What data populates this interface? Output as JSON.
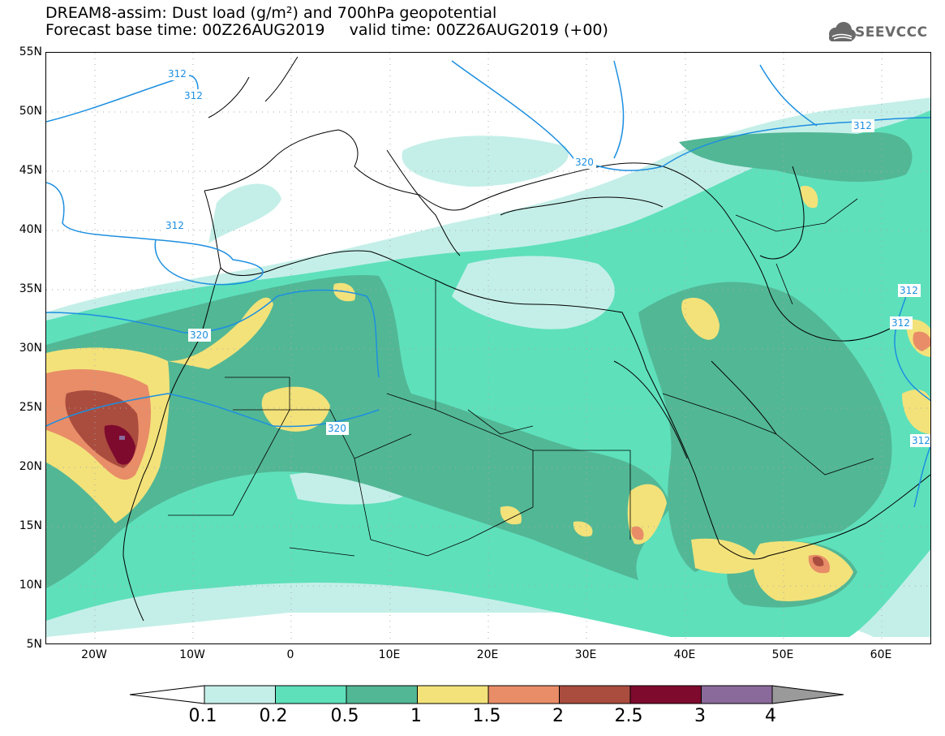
{
  "title": {
    "line1": "DREAM8-assim: Dust load (g/m²) and 700hPa geopotential",
    "line2": "Forecast base time: 00Z26AUG2019     valid time: 00Z26AUG2019 (+00)"
  },
  "logo": {
    "text": "SEEVCCC",
    "icon": "cloud-icon"
  },
  "map": {
    "lon_range": [
      -25,
      65
    ],
    "lat_range": [
      5,
      55
    ],
    "lat_labels": [
      "55N",
      "50N",
      "45N",
      "40N",
      "35N",
      "30N",
      "25N",
      "20N",
      "15N",
      "10N",
      "5N"
    ],
    "lon_labels": [
      "20W",
      "10W",
      "0",
      "10E",
      "20E",
      "30E",
      "40E",
      "50E",
      "60E"
    ],
    "contour_labels": [
      "312",
      "312",
      "312",
      "312",
      "312",
      "320",
      "320",
      "320",
      "312",
      "312"
    ],
    "dust_colors": {
      "c01": "#c4efe8",
      "c02": "#5ee0bb",
      "c05": "#52b795",
      "c1": "#f3e27a",
      "c15": "#e88d67",
      "c2": "#aa4c3e",
      "c25": "#7e0a2e",
      "c3": "#8a6a9b",
      "contour": "#1d8fe0"
    }
  },
  "colorbar": {
    "labels": [
      "0.1",
      "0.2",
      "0.5",
      "1",
      "1.5",
      "2",
      "2.5",
      "3",
      "4"
    ],
    "colors": [
      "#c4efe8",
      "#5ee0bb",
      "#52b795",
      "#f3e27a",
      "#e88d67",
      "#aa4c3e",
      "#7e0a2e",
      "#8a6a9b"
    ],
    "left_arrow_color": "#ffffff",
    "right_arrow_color": "#9a9a9a"
  }
}
